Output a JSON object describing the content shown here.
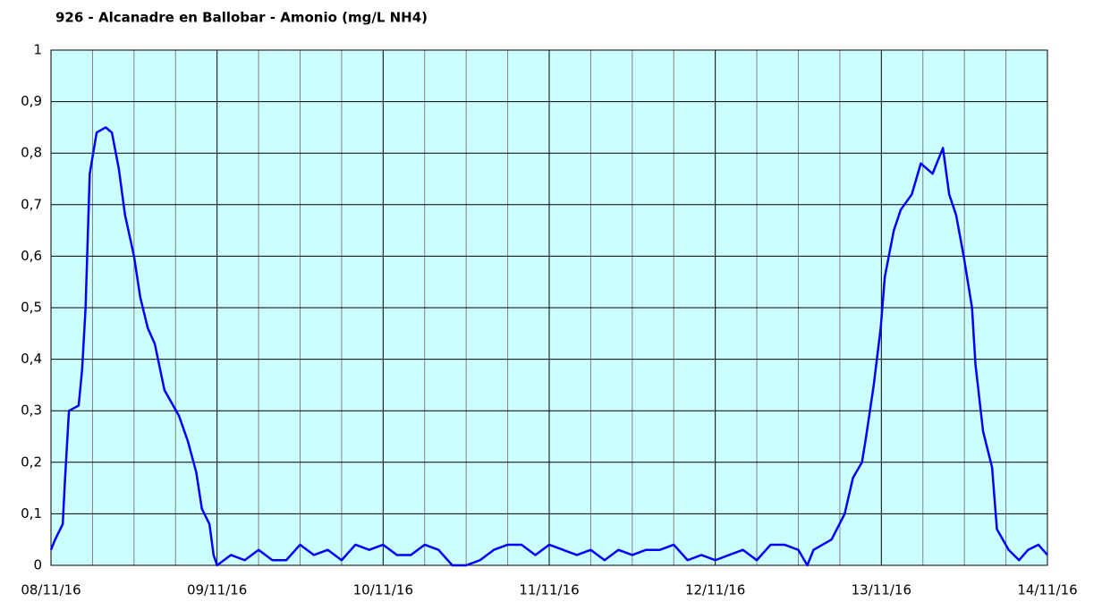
{
  "chart_data": {
    "type": "line",
    "title": "926 - Alcanadre en Ballobar - Amonio (mg/L NH4)",
    "x": [
      0,
      0.6,
      1.7,
      2,
      2.6,
      4,
      4.5,
      5,
      5.6,
      6.6,
      7.9,
      8.8,
      9.8,
      10.7,
      12,
      12.9,
      14,
      15,
      16.4,
      18.5,
      19.8,
      21,
      21.8,
      22.9,
      23.5,
      24,
      26,
      28,
      30,
      32,
      34,
      36,
      38,
      40,
      42,
      44,
      46,
      48,
      50,
      52,
      54,
      56,
      58,
      60,
      62,
      64,
      66,
      68,
      70,
      72,
      74,
      76,
      78,
      80,
      82,
      84,
      86,
      88,
      90,
      92,
      94,
      96,
      98,
      100,
      102,
      104,
      106,
      108,
      109.3,
      110.2,
      112.8,
      114.7,
      115.9,
      117.2,
      117.8,
      118.9,
      119.9,
      120.5,
      121.8,
      122.8,
      124.4,
      125.7,
      127.4,
      128.9,
      129.8,
      130.8,
      131.9,
      133.1,
      133.6,
      134.7,
      136,
      136.7,
      138.4,
      139.9,
      141.2,
      142.7,
      144
    ],
    "series": [
      {
        "name": "Amonio",
        "color": "#0000ff",
        "values": [
          0.03,
          0.05,
          0.08,
          0.16,
          0.3,
          0.31,
          0.38,
          0.5,
          0.76,
          0.84,
          0.85,
          0.84,
          0.77,
          0.68,
          0.6,
          0.52,
          0.46,
          0.43,
          0.34,
          0.29,
          0.24,
          0.18,
          0.11,
          0.08,
          0.02,
          0,
          0.02,
          0.01,
          0.03,
          0.01,
          0.01,
          0.04,
          0.02,
          0.03,
          0.01,
          0.04,
          0.03,
          0.04,
          0.02,
          0.02,
          0.04,
          0.03,
          0,
          0,
          0.01,
          0.03,
          0.04,
          0.04,
          0.02,
          0.04,
          0.03,
          0.02,
          0.03,
          0.01,
          0.03,
          0.02,
          0.03,
          0.03,
          0.04,
          0.01,
          0.02,
          0.01,
          0.02,
          0.03,
          0.01,
          0.04,
          0.04,
          0.03,
          0,
          0.03,
          0.05,
          0.1,
          0.17,
          0.2,
          0.25,
          0.35,
          0.46,
          0.56,
          0.65,
          0.69,
          0.72,
          0.78,
          0.76,
          0.81,
          0.72,
          0.68,
          0.6,
          0.5,
          0.39,
          0.26,
          0.19,
          0.07,
          0.03,
          0.01,
          0.03,
          0.04,
          0.02
        ]
      }
    ],
    "xlim": [
      0,
      144
    ],
    "xticks": [
      {
        "value": 0,
        "label": "08/11/16"
      },
      {
        "value": 24,
        "label": "09/11/16"
      },
      {
        "value": 48,
        "label": "10/11/16"
      },
      {
        "value": 72,
        "label": "11/11/16"
      },
      {
        "value": 96,
        "label": "12/11/16"
      },
      {
        "value": 120,
        "label": "13/11/16"
      },
      {
        "value": 144,
        "label": "14/11/16"
      }
    ],
    "ylim": [
      0,
      1
    ],
    "yticks": [
      0,
      {
        "value": 0.1,
        "label": "0,1"
      },
      {
        "value": 0.2,
        "label": "0,2"
      },
      {
        "value": 0.3,
        "label": "0,3"
      },
      {
        "value": 0.4,
        "label": "0,4"
      },
      {
        "value": 0.5,
        "label": "0,5"
      },
      {
        "value": 0.6,
        "label": "0,6"
      },
      {
        "value": 0.7,
        "label": "0,7"
      },
      {
        "value": 0.8,
        "label": "0,8"
      },
      {
        "value": 0.9,
        "label": "0,9"
      },
      1
    ],
    "grid": true,
    "background": "#ccffff"
  }
}
